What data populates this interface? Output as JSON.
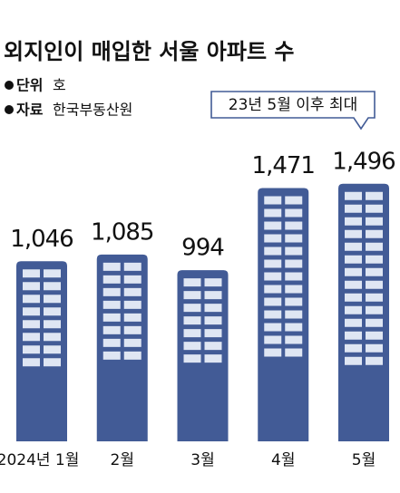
{
  "chart_data": {
    "type": "bar",
    "title": "외지인이 매입한 서울 아파트 수",
    "unit_label": "단위",
    "unit": "호",
    "source_label": "자료",
    "source": "한국부동산원",
    "annotation": "23년 5월 이후 최대",
    "categories": [
      "2024년 1월",
      "2월",
      "3월",
      "4월",
      "5월"
    ],
    "values": [
      1046,
      1085,
      994,
      1471,
      1496
    ],
    "value_labels": [
      "1,046",
      "1,085",
      "994",
      "1,471",
      "1,496"
    ],
    "color": "#425b96",
    "window_color": "#dfe6f3"
  }
}
